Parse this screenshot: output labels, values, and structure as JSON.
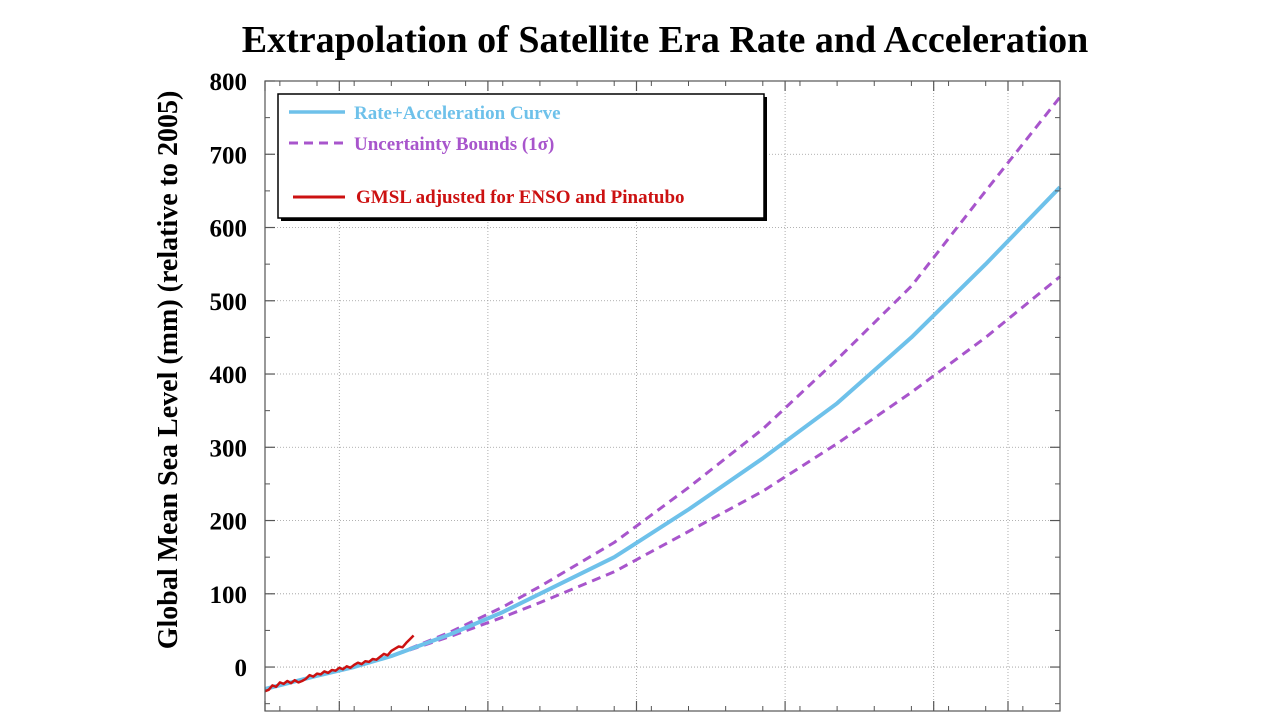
{
  "chart_data": {
    "type": "line",
    "title": "Extrapolation of Satellite Era Rate and Acceleration",
    "ylabel": "Global Mean Sea Level (mm) (relative to 2005)",
    "xlabel": "",
    "xlim": [
      1993,
      2100
    ],
    "ylim": [
      -60,
      800
    ],
    "yticks": [
      0,
      100,
      200,
      300,
      400,
      500,
      600,
      700,
      800
    ],
    "xticks_major": [
      1993,
      2003,
      2023,
      2043,
      2063,
      2083,
      2093
    ],
    "grid": true,
    "legend_position": "top-left",
    "series": [
      {
        "name": "Rate+Acceleration Curve",
        "color": "#6ec1ea",
        "style": "solid",
        "x": [
          1993,
          2000,
          2005,
          2010,
          2018,
          2025,
          2030,
          2040,
          2050,
          2060,
          2070,
          2080,
          2090,
          2100
        ],
        "y": [
          -30,
          -12,
          0,
          15,
          45,
          75,
          100,
          150,
          215,
          285,
          360,
          450,
          550,
          655
        ]
      },
      {
        "name": "Uncertainty Bounds (1σ)",
        "color": "#a855cc",
        "style": "dashed",
        "x": [
          1993,
          2000,
          2005,
          2010,
          2018,
          2025,
          2030,
          2040,
          2050,
          2060,
          2070,
          2080,
          2090,
          2100
        ],
        "y": [
          -30,
          -12,
          0,
          15,
          48,
          82,
          110,
          170,
          245,
          325,
          420,
          520,
          650,
          778
        ]
      },
      {
        "name": "",
        "color": "#a855cc",
        "style": "dashed",
        "x": [
          1993,
          2000,
          2005,
          2010,
          2018,
          2025,
          2030,
          2040,
          2050,
          2060,
          2070,
          2080,
          2090,
          2100
        ],
        "y": [
          -30,
          -12,
          0,
          15,
          42,
          68,
          88,
          130,
          185,
          240,
          305,
          375,
          450,
          533
        ]
      },
      {
        "name": "GMSL adjusted for ENSO and Pinatubo",
        "color": "#cc1111",
        "style": "solid",
        "x": [
          1993.0,
          1993.5,
          1994.0,
          1994.5,
          1995.0,
          1995.5,
          1996.0,
          1996.5,
          1997.0,
          1997.5,
          1998.0,
          1998.5,
          1999.0,
          1999.5,
          2000.0,
          2000.5,
          2001.0,
          2001.5,
          2002.0,
          2002.5,
          2003.0,
          2003.5,
          2004.0,
          2004.5,
          2005.0,
          2005.5,
          2006.0,
          2006.5,
          2007.0,
          2007.5,
          2008.0,
          2008.5,
          2009.0,
          2009.5,
          2010.0,
          2010.5,
          2011.0,
          2011.5,
          2012.0,
          2012.5,
          2013.0
        ],
        "y": [
          -33,
          -31,
          -25,
          -27,
          -21,
          -23,
          -19,
          -22,
          -18,
          -21,
          -19,
          -16,
          -11,
          -13,
          -9,
          -10,
          -6,
          -8,
          -4,
          -5,
          -1,
          -3,
          1,
          -1,
          3,
          6,
          4,
          8,
          7,
          11,
          10,
          14,
          18,
          16,
          22,
          25,
          28,
          27,
          33,
          38,
          43
        ]
      }
    ]
  }
}
